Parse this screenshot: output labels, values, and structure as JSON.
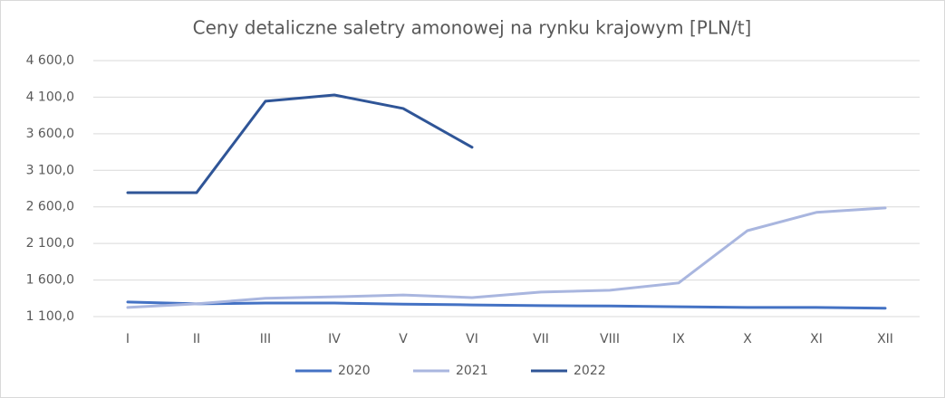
{
  "chart_data": {
    "type": "line",
    "title": "Ceny detaliczne saletry amonowej na rynku krajowym [PLN/t]",
    "categories": [
      "I",
      "II",
      "III",
      "IV",
      "V",
      "VI",
      "VII",
      "VIII",
      "IX",
      "X",
      "XI",
      "XII"
    ],
    "series": [
      {
        "name": "2020",
        "color": "#4472c4",
        "values": [
          1300,
          1275,
          1285,
          1285,
          1270,
          1260,
          1250,
          1245,
          1235,
          1225,
          1225,
          1215
        ]
      },
      {
        "name": "2021",
        "color": "#a9b6df",
        "values": [
          1225,
          1275,
          1350,
          1370,
          1395,
          1360,
          1435,
          1460,
          1560,
          2275,
          2525,
          2585
        ]
      },
      {
        "name": "2022",
        "color": "#2f5597",
        "values": [
          2795,
          2795,
          4045,
          4130,
          3945,
          3415,
          null,
          null,
          null,
          null,
          null,
          null
        ]
      }
    ],
    "ylim": [
      1100,
      4600
    ],
    "yticks": [
      {
        "value": 1100,
        "label": "1 100,0"
      },
      {
        "value": 1600,
        "label": "1 600,0"
      },
      {
        "value": 2100,
        "label": "2 100,0"
      },
      {
        "value": 2600,
        "label": "2 600,0"
      },
      {
        "value": 3100,
        "label": "3 100,0"
      },
      {
        "value": 3600,
        "label": "3 600,0"
      },
      {
        "value": 4100,
        "label": "4 100,0"
      },
      {
        "value": 4600,
        "label": "4 600,0"
      }
    ],
    "grid": true,
    "legend": "bottom"
  }
}
